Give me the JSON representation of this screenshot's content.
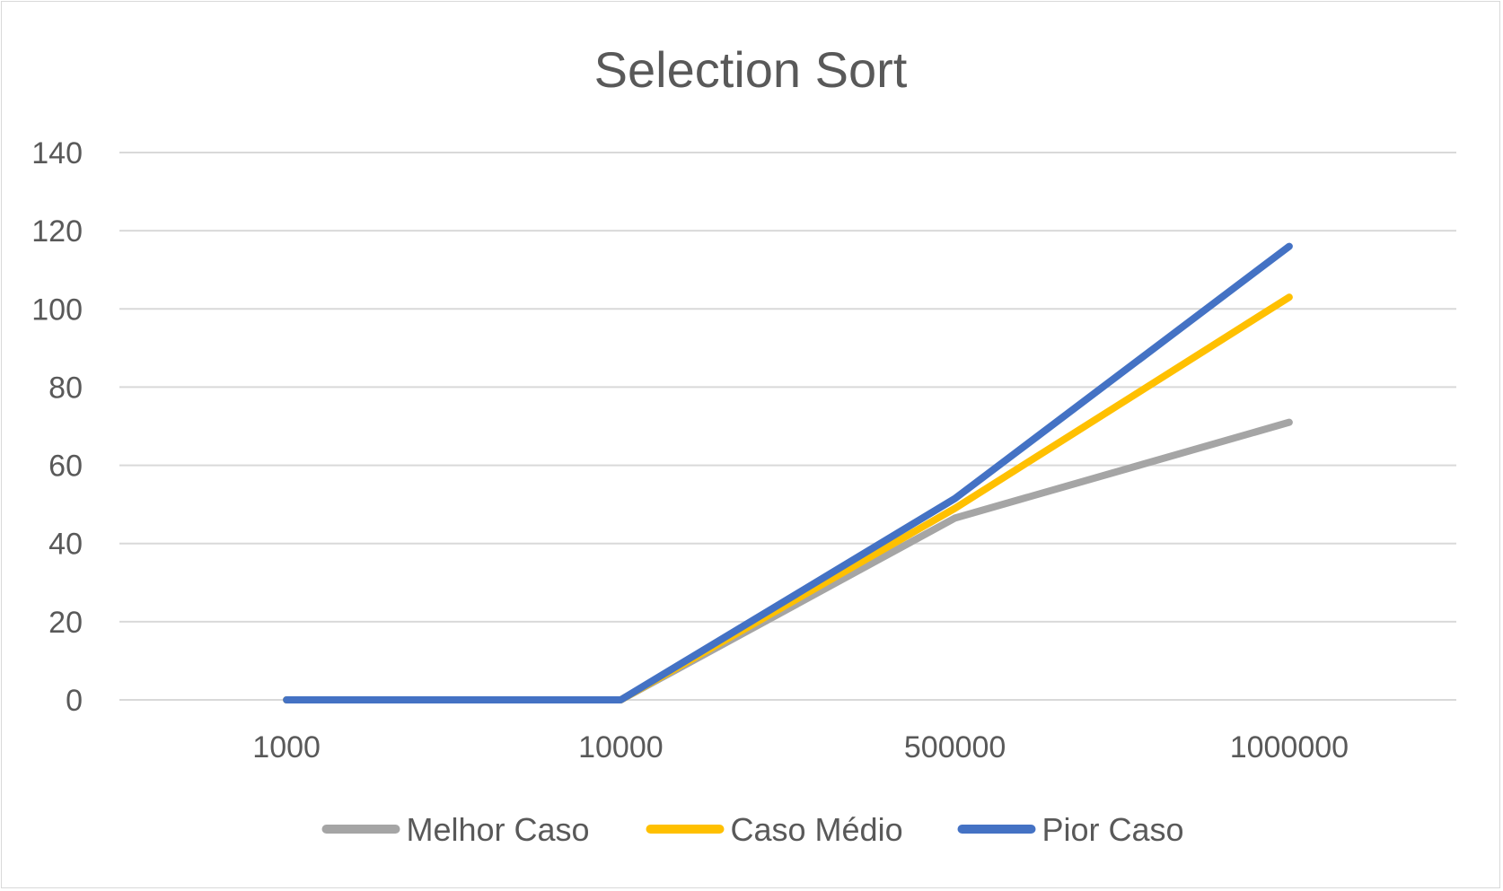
{
  "chart_data": {
    "type": "line",
    "title": "Selection Sort",
    "xlabel": "",
    "ylabel": "",
    "categories": [
      "1000",
      "10000",
      "500000",
      "1000000"
    ],
    "ylim": [
      0,
      140
    ],
    "yticks": [
      0,
      20,
      40,
      60,
      80,
      100,
      120,
      140
    ],
    "grid": true,
    "legend_position": "bottom",
    "series": [
      {
        "name": "Melhor Caso",
        "values": [
          0,
          0,
          46.5,
          71
        ],
        "color": "#a5a5a5"
      },
      {
        "name": "Caso Médio",
        "values": [
          0,
          0,
          49,
          103
        ],
        "color": "#ffc000"
      },
      {
        "name": "Pior Caso",
        "values": [
          0,
          0,
          51.5,
          116
        ],
        "color": "#4472c4"
      }
    ]
  }
}
